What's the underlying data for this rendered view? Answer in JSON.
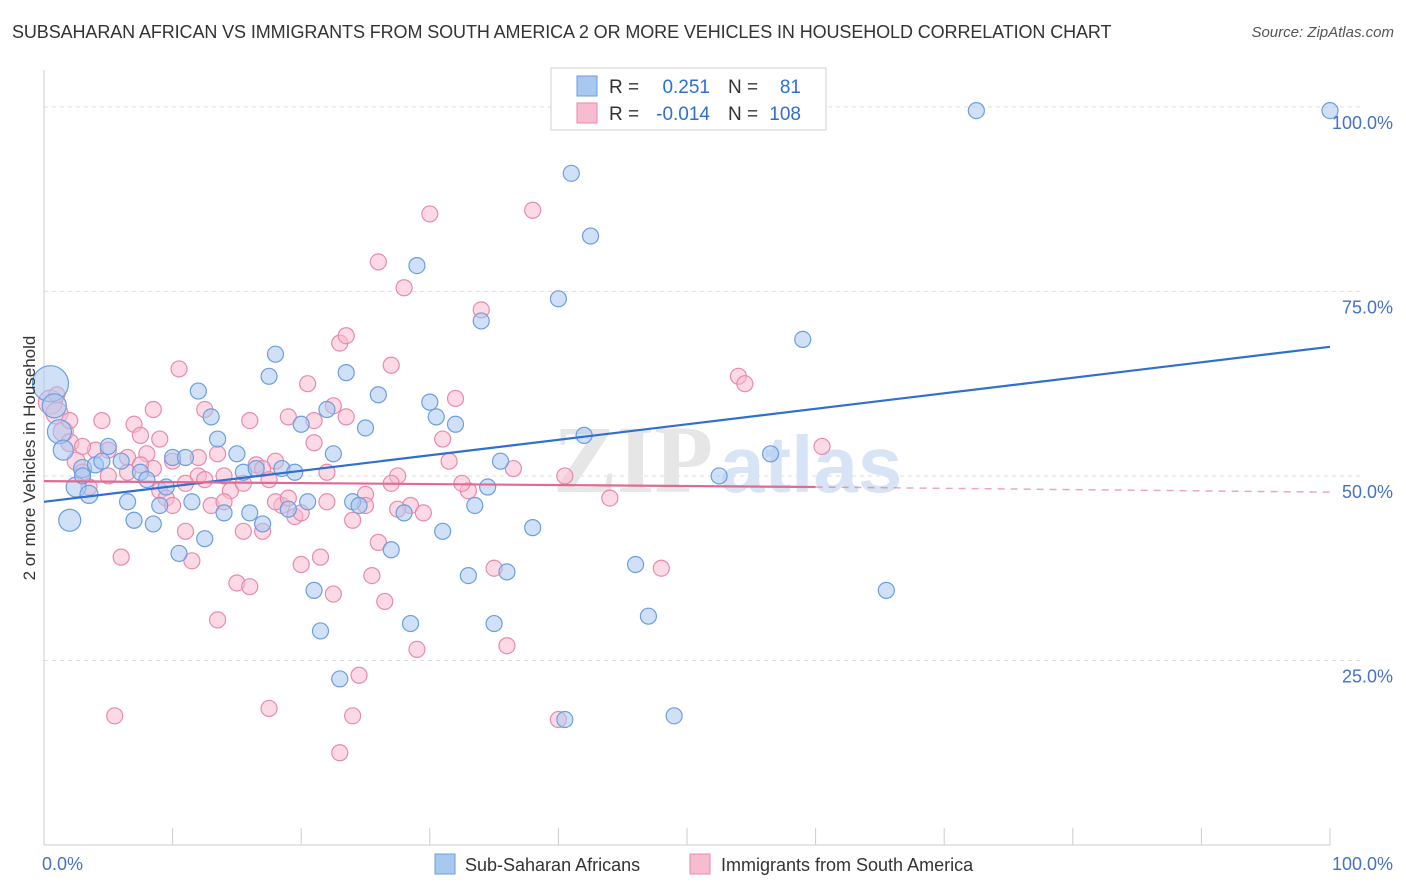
{
  "title": "SUBSAHARAN AFRICAN VS IMMIGRANTS FROM SOUTH AMERICA 2 OR MORE VEHICLES IN HOUSEHOLD CORRELATION CHART",
  "source": "Source: ZipAtlas.com",
  "watermark": {
    "zip": "ZIP",
    "atlas": "atlas"
  },
  "colors": {
    "blue_fill": "#a9c8f0",
    "blue_stroke": "#6b9ee0",
    "blue_line": "#2e6fd0",
    "pink_fill": "#f7bcd0",
    "pink_stroke": "#e98aab",
    "pink_line": "#e06a94",
    "tick": "#4472c4",
    "grid": "#dddddd"
  },
  "legend_top": {
    "rows": [
      {
        "r_label": "R =",
        "r_value": "0.251",
        "n_label": "N =",
        "n_value": "81"
      },
      {
        "r_label": "R =",
        "r_value": "-0.014",
        "n_label": "N =",
        "n_value": "108"
      }
    ]
  },
  "legend_bottom": {
    "items": [
      "Sub-Saharan Africans",
      "Immigrants from South America"
    ]
  },
  "chart_data": {
    "type": "scatter",
    "ylabel": "2 or more Vehicles in Household",
    "xlim": [
      0,
      100
    ],
    "ylim": [
      0,
      105
    ],
    "x_tick_labels": [
      "0.0%",
      "100.0%"
    ],
    "y_tick_labels": [
      "25.0%",
      "50.0%",
      "75.0%",
      "100.0%"
    ],
    "y_ticks": [
      25,
      50,
      75,
      100
    ],
    "grid": true,
    "series": [
      {
        "name": "Sub-Saharan Africans",
        "trend": {
          "x": [
            0,
            100
          ],
          "y": [
            46.5,
            67.5
          ],
          "style": "solid"
        },
        "points": [
          [
            0.5,
            62.5,
            18
          ],
          [
            0.8,
            59.5,
            12
          ],
          [
            1.2,
            56.0,
            12
          ],
          [
            1.5,
            53.5,
            10
          ],
          [
            2.0,
            44.0,
            11
          ],
          [
            2.5,
            48.5,
            10
          ],
          [
            3.0,
            51.0,
            9
          ],
          [
            3.5,
            47.5,
            9
          ],
          [
            4.0,
            51.5,
            8
          ],
          [
            4.5,
            52.0,
            8
          ],
          [
            5.0,
            54.0,
            8
          ],
          [
            6.0,
            52.0,
            8
          ],
          [
            6.5,
            46.5,
            8
          ],
          [
            7.5,
            50.5,
            8
          ],
          [
            8.0,
            49.5,
            8
          ],
          [
            8.5,
            43.5,
            8
          ],
          [
            9.0,
            46.0,
            8
          ],
          [
            9.5,
            48.5,
            8
          ],
          [
            10.0,
            52.5,
            8
          ],
          [
            10.5,
            39.5,
            8
          ],
          [
            11.0,
            52.5,
            8
          ],
          [
            11.5,
            46.5,
            8
          ],
          [
            12.0,
            61.5,
            8
          ],
          [
            12.5,
            41.5,
            8
          ],
          [
            13.0,
            58.0,
            8
          ],
          [
            13.5,
            55.0,
            8
          ],
          [
            14.0,
            45.0,
            8
          ],
          [
            15.0,
            53.0,
            8
          ],
          [
            15.5,
            50.5,
            8
          ],
          [
            16.0,
            45.0,
            8
          ],
          [
            16.5,
            51.0,
            8
          ],
          [
            17.0,
            43.5,
            8
          ],
          [
            17.5,
            63.5,
            8
          ],
          [
            18.0,
            66.5,
            8
          ],
          [
            18.5,
            51.0,
            8
          ],
          [
            19.0,
            45.5,
            8
          ],
          [
            19.5,
            50.5,
            8
          ],
          [
            20.0,
            57.0,
            8
          ],
          [
            20.5,
            46.5,
            8
          ],
          [
            21.0,
            34.5,
            8
          ],
          [
            21.5,
            29.0,
            8
          ],
          [
            22.0,
            59.0,
            8
          ],
          [
            22.5,
            53.0,
            8
          ],
          [
            23.0,
            22.5,
            8
          ],
          [
            23.5,
            64.0,
            8
          ],
          [
            24.0,
            46.5,
            8
          ],
          [
            24.5,
            46.0,
            8
          ],
          [
            25.0,
            56.5,
            8
          ],
          [
            26.0,
            61.0,
            8
          ],
          [
            28.0,
            45.0,
            8
          ],
          [
            28.5,
            30.0,
            8
          ],
          [
            29.0,
            78.5,
            8
          ],
          [
            30.0,
            60.0,
            8
          ],
          [
            30.5,
            58.0,
            8
          ],
          [
            31.0,
            42.5,
            8
          ],
          [
            32.0,
            57.0,
            8
          ],
          [
            33.0,
            36.5,
            8
          ],
          [
            33.5,
            46.0,
            8
          ],
          [
            34.0,
            71.0,
            8
          ],
          [
            34.5,
            48.5,
            8
          ],
          [
            35.0,
            30.0,
            8
          ],
          [
            35.5,
            52.0,
            8
          ],
          [
            36.0,
            37.0,
            8
          ],
          [
            40.0,
            74.0,
            8
          ],
          [
            40.5,
            17.0,
            8
          ],
          [
            41.0,
            91.0,
            8
          ],
          [
            42.0,
            55.5,
            8
          ],
          [
            42.5,
            82.5,
            8
          ],
          [
            46.0,
            38.0,
            8
          ],
          [
            47.0,
            31.0,
            8
          ],
          [
            49.0,
            17.5,
            8
          ],
          [
            52.5,
            50.0,
            8
          ],
          [
            56.5,
            53.0,
            8
          ],
          [
            59.0,
            68.5,
            8
          ],
          [
            65.5,
            34.5,
            8
          ],
          [
            72.5,
            99.5,
            8
          ],
          [
            100.0,
            99.5,
            8
          ],
          [
            3.0,
            50.0,
            8
          ],
          [
            7.0,
            44.0,
            8
          ],
          [
            27.0,
            40.0,
            8
          ],
          [
            38.0,
            43.0,
            8
          ]
        ]
      },
      {
        "name": "Immigrants from South America",
        "trend": {
          "x": [
            0,
            60,
            100
          ],
          "y": [
            49.3,
            48.5,
            47.8
          ],
          "style": "solid-then-dashed"
        },
        "points": [
          [
            0.5,
            60.0,
            12
          ],
          [
            1.0,
            58.5,
            11
          ],
          [
            1.5,
            56.0,
            10
          ],
          [
            2.0,
            54.5,
            9
          ],
          [
            2.5,
            52.0,
            9
          ],
          [
            3.0,
            50.5,
            8
          ],
          [
            3.5,
            48.5,
            8
          ],
          [
            4.0,
            53.5,
            8
          ],
          [
            4.5,
            57.5,
            8
          ],
          [
            5.0,
            50.0,
            8
          ],
          [
            5.5,
            17.5,
            8
          ],
          [
            6.0,
            39.0,
            8
          ],
          [
            6.5,
            52.5,
            8
          ],
          [
            7.0,
            57.0,
            8
          ],
          [
            7.5,
            55.5,
            8
          ],
          [
            8.0,
            53.0,
            8
          ],
          [
            8.5,
            51.0,
            8
          ],
          [
            9.0,
            48.0,
            8
          ],
          [
            9.5,
            47.0,
            8
          ],
          [
            10.0,
            46.0,
            8
          ],
          [
            10.5,
            64.5,
            8
          ],
          [
            11.0,
            42.5,
            8
          ],
          [
            11.5,
            38.5,
            8
          ],
          [
            12.0,
            52.5,
            8
          ],
          [
            12.5,
            59.0,
            8
          ],
          [
            13.0,
            46.0,
            8
          ],
          [
            13.5,
            30.5,
            8
          ],
          [
            14.0,
            50.0,
            8
          ],
          [
            14.5,
            48.0,
            8
          ],
          [
            15.0,
            35.5,
            8
          ],
          [
            15.5,
            42.5,
            8
          ],
          [
            16.0,
            57.5,
            8
          ],
          [
            16.5,
            51.5,
            8
          ],
          [
            17.0,
            42.5,
            8
          ],
          [
            17.5,
            18.5,
            8
          ],
          [
            18.0,
            52.0,
            8
          ],
          [
            18.5,
            46.0,
            8
          ],
          [
            19.0,
            58.0,
            8
          ],
          [
            19.5,
            44.5,
            8
          ],
          [
            20.0,
            38.0,
            8
          ],
          [
            20.5,
            62.5,
            8
          ],
          [
            21.0,
            54.5,
            8
          ],
          [
            21.5,
            39.0,
            8
          ],
          [
            22.0,
            50.5,
            8
          ],
          [
            22.5,
            34.0,
            8
          ],
          [
            23.0,
            68.0,
            8
          ],
          [
            23.5,
            58.0,
            8
          ],
          [
            24.0,
            17.5,
            8
          ],
          [
            24.5,
            23.0,
            8
          ],
          [
            25.0,
            47.5,
            8
          ],
          [
            25.5,
            36.5,
            8
          ],
          [
            26.0,
            79.0,
            8
          ],
          [
            26.5,
            33.0,
            8
          ],
          [
            27.0,
            65.0,
            8
          ],
          [
            27.5,
            50.0,
            8
          ],
          [
            28.0,
            75.5,
            8
          ],
          [
            28.5,
            46.0,
            8
          ],
          [
            29.0,
            26.5,
            8
          ],
          [
            30.0,
            85.5,
            8
          ],
          [
            31.0,
            55.0,
            8
          ],
          [
            32.0,
            60.5,
            8
          ],
          [
            33.0,
            48.0,
            8
          ],
          [
            34.0,
            72.5,
            8
          ],
          [
            35.0,
            37.5,
            8
          ],
          [
            36.0,
            27.0,
            8
          ],
          [
            38.0,
            86.0,
            8
          ],
          [
            40.0,
            17.0,
            8
          ],
          [
            40.5,
            50.0,
            8
          ],
          [
            44.0,
            47.0,
            8
          ],
          [
            48.0,
            37.5,
            8
          ],
          [
            54.0,
            63.5,
            8
          ],
          [
            54.5,
            62.5,
            8
          ],
          [
            60.5,
            54.0,
            8
          ],
          [
            5.0,
            53.5,
            8
          ],
          [
            8.5,
            59.0,
            8
          ],
          [
            10.0,
            52.0,
            8
          ],
          [
            12.0,
            50.0,
            8
          ],
          [
            14.0,
            46.5,
            8
          ],
          [
            16.0,
            35.0,
            8
          ],
          [
            18.0,
            46.5,
            8
          ],
          [
            20.0,
            45.0,
            8
          ],
          [
            22.0,
            46.5,
            8
          ],
          [
            24.0,
            44.0,
            8
          ],
          [
            26.0,
            41.0,
            8
          ],
          [
            23.0,
            12.5,
            8
          ],
          [
            6.5,
            50.5,
            8
          ],
          [
            9.0,
            55.0,
            8
          ],
          [
            11.0,
            49.0,
            8
          ],
          [
            13.5,
            53.0,
            8
          ],
          [
            15.5,
            49.0,
            8
          ],
          [
            17.0,
            51.0,
            8
          ],
          [
            19.0,
            47.0,
            8
          ],
          [
            21.0,
            57.5,
            8
          ],
          [
            23.5,
            69.0,
            8
          ],
          [
            25.0,
            46.0,
            8
          ],
          [
            27.0,
            49.0,
            8
          ],
          [
            29.5,
            45.0,
            8
          ],
          [
            31.5,
            52.0,
            8
          ],
          [
            3.0,
            54.0,
            8
          ],
          [
            2.0,
            57.5,
            8
          ],
          [
            1.0,
            61.0,
            8
          ],
          [
            7.5,
            51.5,
            8
          ],
          [
            12.5,
            49.5,
            8
          ],
          [
            17.5,
            49.5,
            8
          ],
          [
            22.5,
            59.5,
            8
          ],
          [
            27.5,
            45.5,
            8
          ],
          [
            32.5,
            49.0,
            8
          ],
          [
            36.5,
            51.0,
            8
          ]
        ]
      }
    ]
  }
}
